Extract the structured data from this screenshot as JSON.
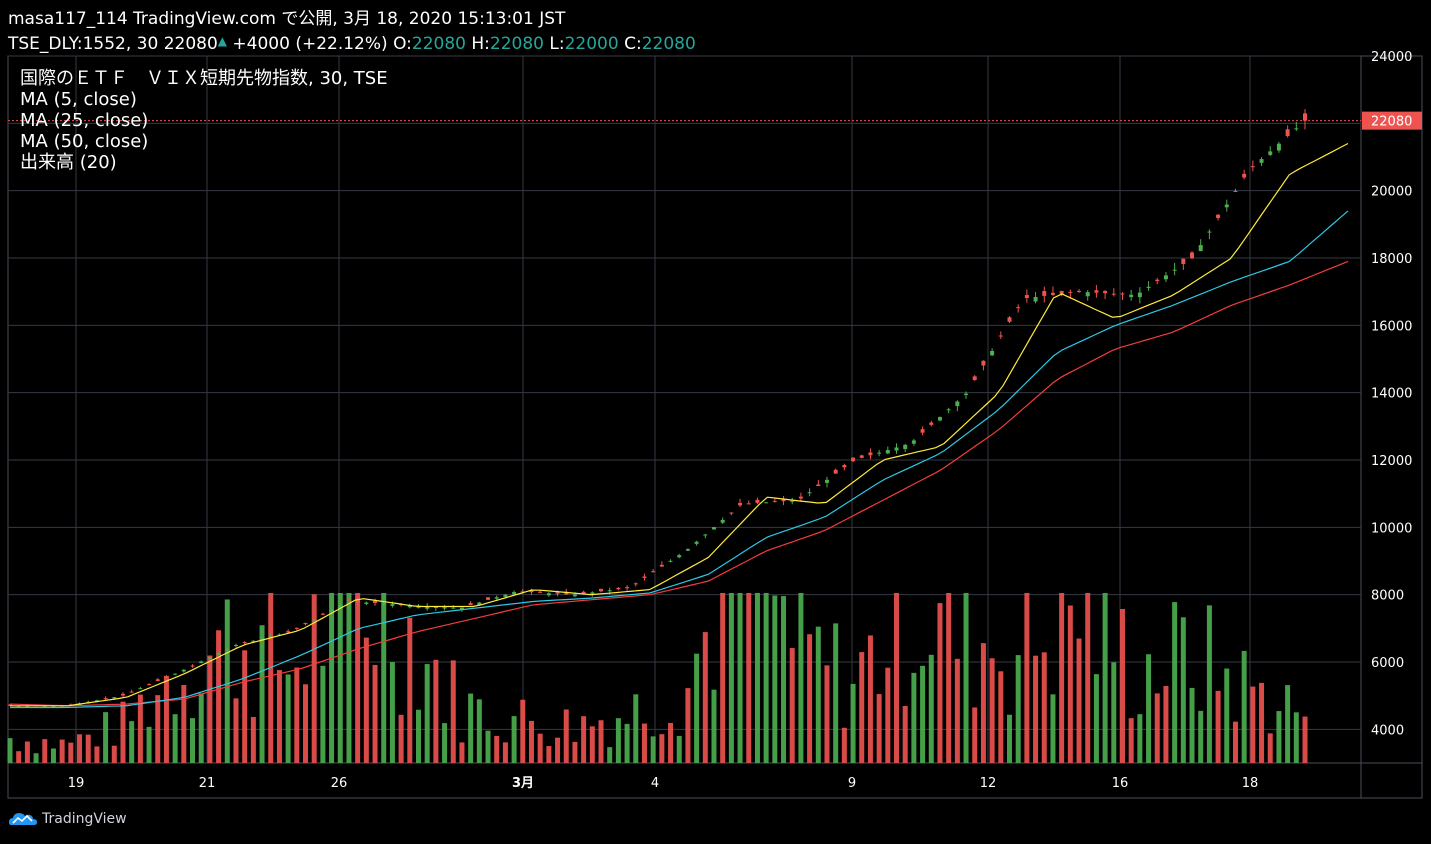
{
  "header": {
    "line1": "masa117_114 TradingView.com で公開, 3月 18, 2020 15:13:01 JST",
    "symbol": "TSE_DLY:1552, 30",
    "last": "22080",
    "change": "+4000 (+22.12%)",
    "o_label": "O:",
    "o": "22080",
    "h_label": "H:",
    "h": "22080",
    "l_label": "L:",
    "l": "22000",
    "c_label": "C:",
    "c": "22080"
  },
  "legend": [
    "国際のＥＴＦ　ＶＩＸ短期先物指数, 30, TSE",
    "MA (5, close)",
    "MA (25, close)",
    "MA (50, close)",
    "出来高 (20)"
  ],
  "footer": {
    "brand": "TradingView",
    "icon": "tradingview-logo-icon"
  },
  "colors": {
    "up": "#4caf50",
    "down": "#ef5350",
    "ma5": "#ffeb3b",
    "ma25": "#2ec7e6",
    "ma50": "#f23d3d",
    "grid": "#363a45",
    "price_tag": "#ef5350"
  },
  "chart_data": {
    "type": "candlestick",
    "y_axis": {
      "min": 3000,
      "max": 24000,
      "ticks": [
        4000,
        6000,
        8000,
        10000,
        12000,
        14000,
        16000,
        18000,
        20000,
        22000,
        24000
      ]
    },
    "last_price_label": "22080",
    "x_labels": [
      "19",
      "21",
      "26",
      "3月",
      "4",
      "9",
      "12",
      "16",
      "18"
    ],
    "price_knots": [
      4700,
      4700,
      5000,
      5700,
      6500,
      6900,
      7800,
      7700,
      7600,
      8100,
      8000,
      8200,
      9300,
      10700,
      10800,
      12000,
      12500,
      14000,
      16800,
      17000,
      16900,
      18000,
      20600,
      22080
    ],
    "ma5_knots": [
      4700,
      4700,
      4950,
      5650,
      6500,
      6950,
      7900,
      7650,
      7650,
      8150,
      8000,
      8150,
      9100,
      10900,
      10700,
      12000,
      12400,
      14000,
      17000,
      16200,
      16900,
      18000,
      20500,
      21400
    ],
    "ma25_knots": [
      4650,
      4650,
      4700,
      4950,
      5500,
      6200,
      7000,
      7400,
      7600,
      7800,
      7900,
      8050,
      8600,
      9700,
      10300,
      11400,
      12200,
      13500,
      15200,
      16000,
      16600,
      17300,
      17900,
      19400
    ],
    "ma50_knots": [
      4750,
      4700,
      4750,
      4900,
      5400,
      5800,
      6400,
      6900,
      7300,
      7700,
      7850,
      8000,
      8400,
      9300,
      9900,
      10800,
      11700,
      12900,
      14400,
      15300,
      15800,
      16600,
      17200,
      17900
    ],
    "volume_knots": [
      400,
      300,
      600,
      1500,
      2000,
      1500,
      2800,
      2200,
      900,
      700,
      600,
      800,
      1200,
      3500,
      1800,
      1300,
      2500,
      2000,
      1800,
      2500,
      1500,
      1700,
      1200,
      800
    ]
  }
}
